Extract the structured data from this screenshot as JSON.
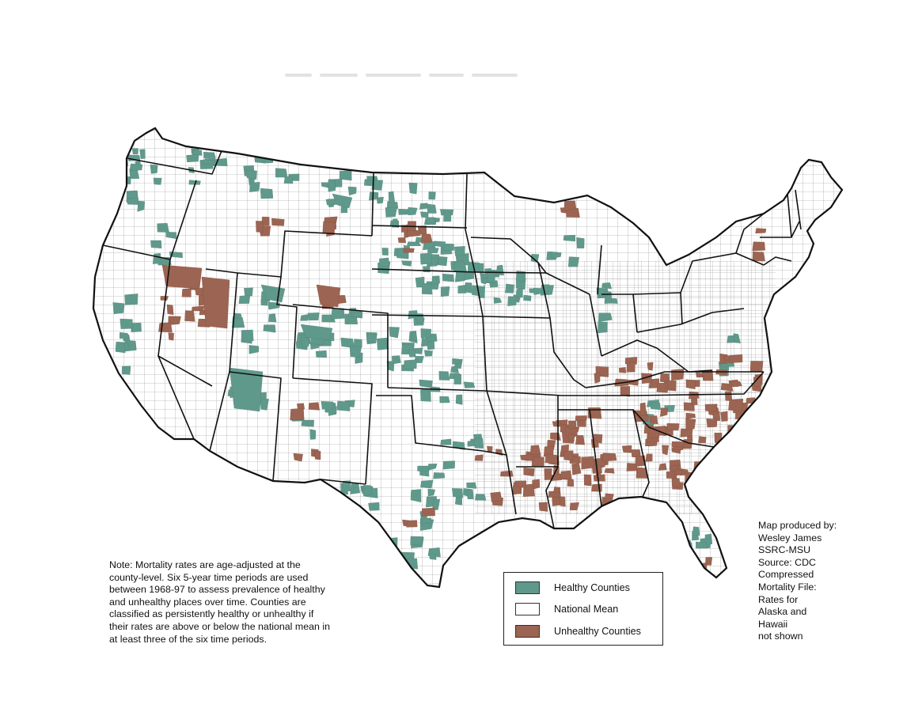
{
  "note": {
    "lines": [
      "Note: Mortality rates are age-adjusted at the",
      "county-level.  Six 5-year time periods are used",
      "between 1968-97 to assess prevalence of healthy",
      "and unhealthy places over time.  Counties are",
      "classified as persistently healthy or unhealthy if",
      "their rates are above or below the national mean in",
      "at least three of the six time periods."
    ]
  },
  "legend": {
    "items": [
      {
        "label": "Healthy Counties",
        "color": "#5f998b"
      },
      {
        "label": "National Mean",
        "color": "#ffffff"
      },
      {
        "label": "Unhealthy Counties",
        "color": "#9c6452"
      }
    ]
  },
  "credits": {
    "lines": [
      "Map produced by:",
      "Wesley James",
      "SSRC-MSU",
      "Source: CDC",
      "Compressed",
      "Mortality File:",
      "Rates for",
      "Alaska and",
      "Hawaii",
      "not shown"
    ]
  },
  "colors": {
    "healthy": "#5f998b",
    "unhealthy": "#9c6452",
    "state_border": "#111111",
    "county_line": "#7a7a7a"
  }
}
